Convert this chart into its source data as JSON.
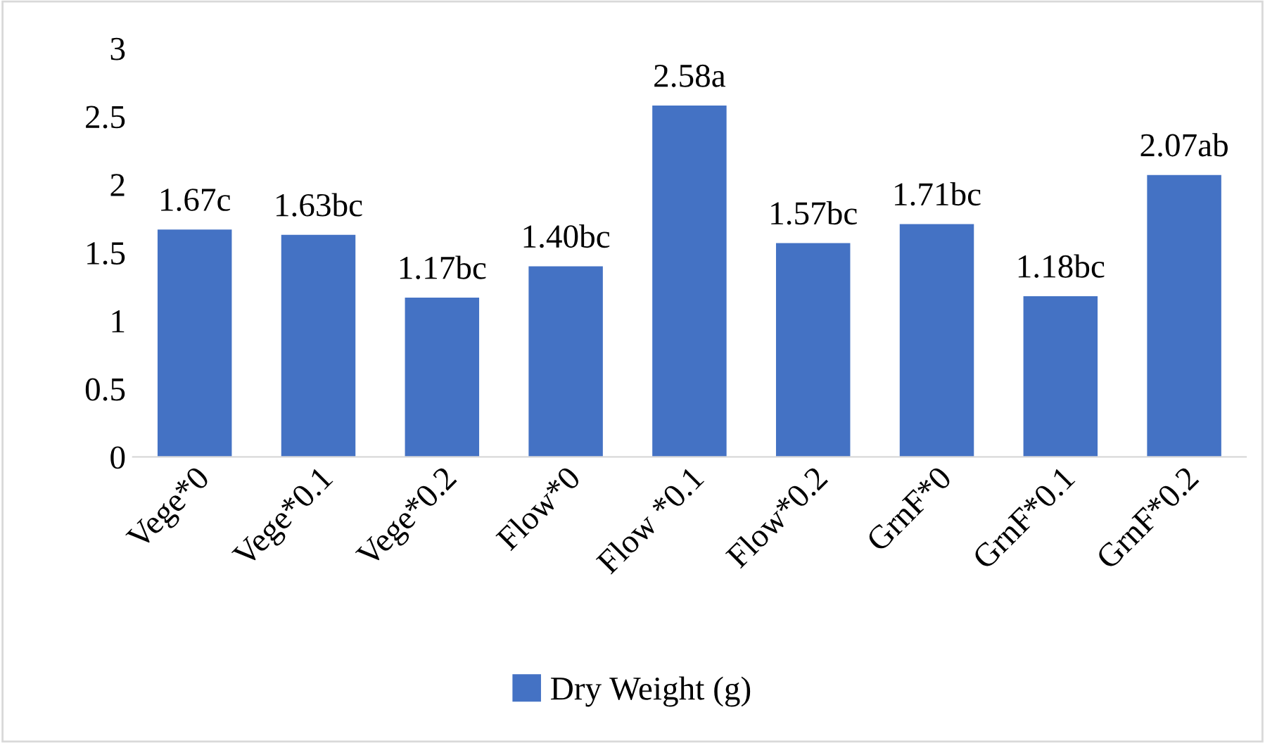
{
  "chart_data": {
    "type": "bar",
    "categories": [
      "Vege*0",
      "Vege*0.1",
      "Vege*0.2",
      "Flow*0",
      "Flow *0.1",
      "Flow*0.2",
      "GrnF*0",
      "GrnF*0.1",
      "GrnF*0.2"
    ],
    "series": [
      {
        "name": "Dry Weight (g)",
        "color": "#4472c4",
        "values": [
          1.67,
          1.63,
          1.17,
          1.4,
          2.58,
          1.57,
          1.71,
          1.18,
          2.07
        ],
        "value_labels": [
          "1.67c",
          "1.63bc",
          "1.17bc",
          "1.40bc",
          "2.58a",
          "1.57bc",
          "1.71bc",
          "1.18bc",
          "2.07ab"
        ]
      }
    ],
    "ylim": [
      0,
      3
    ],
    "yticks": [
      0,
      0.5,
      1,
      1.5,
      2,
      2.5,
      3
    ],
    "grid": false,
    "legend": "bottom"
  }
}
